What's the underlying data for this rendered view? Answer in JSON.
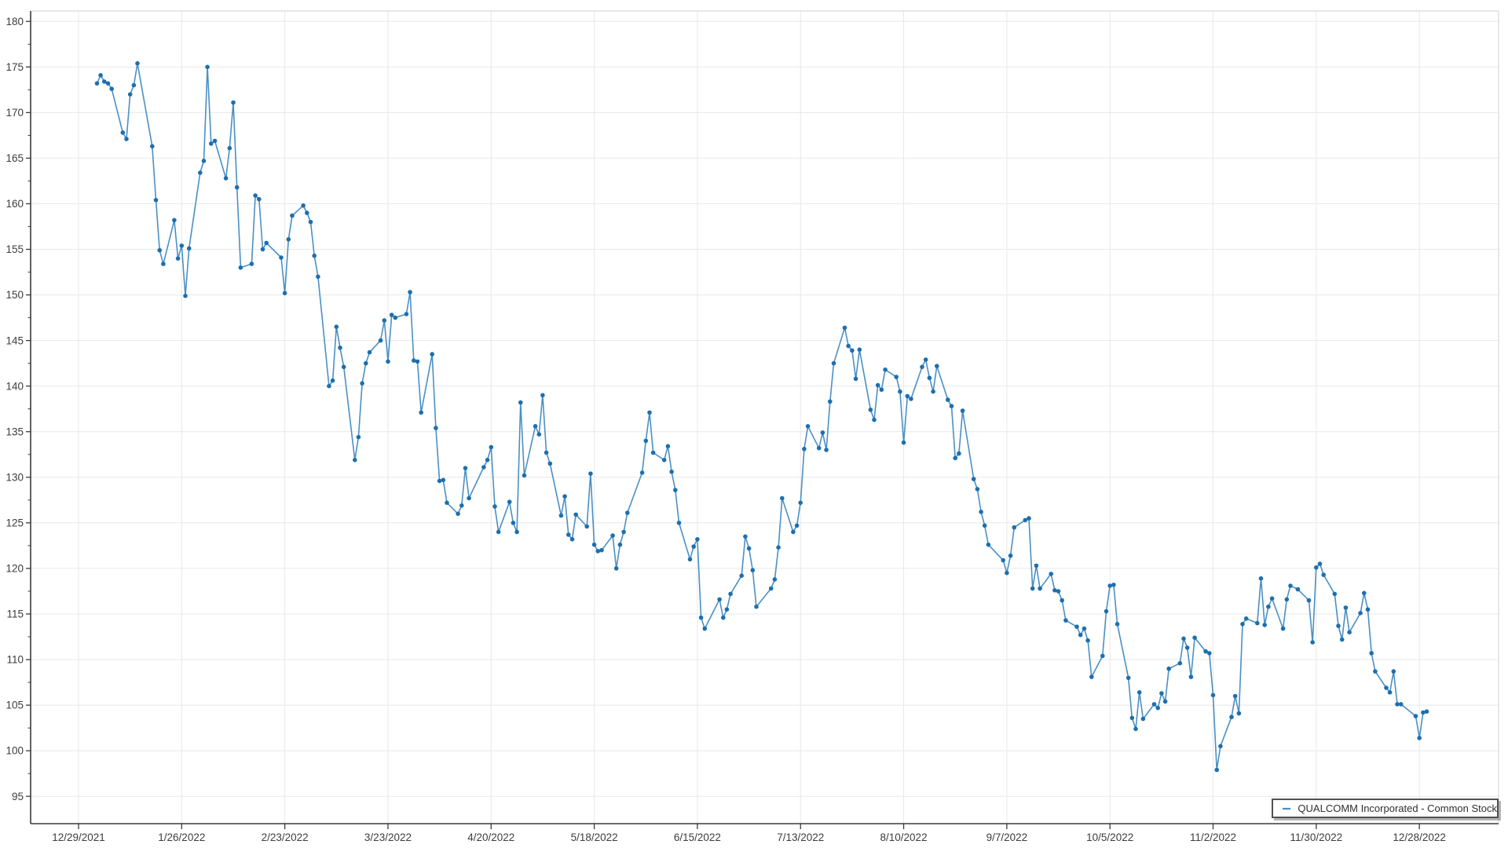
{
  "legend": {
    "label": "QUALCOMM Incorporated - Common Stock"
  },
  "colors": {
    "line": "#4a90c5",
    "marker": "#1d6fae",
    "grid": "#e8e8e8",
    "axis": "#3b3b3b",
    "outer_border": "#d9d9d9",
    "tick_label": "#3d3d3d"
  },
  "chart_data": {
    "type": "line",
    "title": "",
    "xlabel": "",
    "ylabel": "",
    "grid": true,
    "legend_position": "bottom-right",
    "x_start_date": "2021-12-29",
    "x_tick_labels": [
      "12/29/2021",
      "1/26/2022",
      "2/23/2022",
      "3/23/2022",
      "4/20/2022",
      "5/18/2022",
      "6/15/2022",
      "7/13/2022",
      "8/10/2022",
      "9/7/2022",
      "10/5/2022",
      "11/2/2022",
      "11/30/2022",
      "12/28/2022"
    ],
    "x_tick_dates": [
      "2021-12-29",
      "2022-01-26",
      "2022-02-23",
      "2022-03-23",
      "2022-04-20",
      "2022-05-18",
      "2022-06-15",
      "2022-07-13",
      "2022-08-10",
      "2022-09-07",
      "2022-10-05",
      "2022-11-02",
      "2022-11-30",
      "2022-12-28"
    ],
    "y_ticks": [
      95,
      100,
      105,
      110,
      115,
      120,
      125,
      130,
      135,
      140,
      145,
      150,
      155,
      160,
      165,
      170,
      175,
      180
    ],
    "ylim": [
      92.0,
      181.2
    ],
    "series": [
      {
        "name": "QUALCOMM Incorporated - Common Stock",
        "dates": [
          "2022-01-03",
          "2022-01-04",
          "2022-01-05",
          "2022-01-06",
          "2022-01-07",
          "2022-01-10",
          "2022-01-11",
          "2022-01-12",
          "2022-01-13",
          "2022-01-14",
          "2022-01-18",
          "2022-01-19",
          "2022-01-20",
          "2022-01-21",
          "2022-01-24",
          "2022-01-25",
          "2022-01-26",
          "2022-01-27",
          "2022-01-28",
          "2022-01-31",
          "2022-02-01",
          "2022-02-02",
          "2022-02-03",
          "2022-02-04",
          "2022-02-07",
          "2022-02-08",
          "2022-02-09",
          "2022-02-10",
          "2022-02-11",
          "2022-02-14",
          "2022-02-15",
          "2022-02-16",
          "2022-02-17",
          "2022-02-18",
          "2022-02-22",
          "2022-02-23",
          "2022-02-24",
          "2022-02-25",
          "2022-02-28",
          "2022-03-01",
          "2022-03-02",
          "2022-03-03",
          "2022-03-04",
          "2022-03-07",
          "2022-03-08",
          "2022-03-09",
          "2022-03-10",
          "2022-03-11",
          "2022-03-14",
          "2022-03-15",
          "2022-03-16",
          "2022-03-17",
          "2022-03-18",
          "2022-03-21",
          "2022-03-22",
          "2022-03-23",
          "2022-03-24",
          "2022-03-25",
          "2022-03-28",
          "2022-03-29",
          "2022-03-30",
          "2022-03-31",
          "2022-04-01",
          "2022-04-04",
          "2022-04-05",
          "2022-04-06",
          "2022-04-07",
          "2022-04-08",
          "2022-04-11",
          "2022-04-12",
          "2022-04-13",
          "2022-04-14",
          "2022-04-18",
          "2022-04-19",
          "2022-04-20",
          "2022-04-21",
          "2022-04-22",
          "2022-04-25",
          "2022-04-26",
          "2022-04-27",
          "2022-04-28",
          "2022-04-29",
          "2022-05-02",
          "2022-05-03",
          "2022-05-04",
          "2022-05-05",
          "2022-05-06",
          "2022-05-09",
          "2022-05-10",
          "2022-05-11",
          "2022-05-12",
          "2022-05-13",
          "2022-05-16",
          "2022-05-17",
          "2022-05-18",
          "2022-05-19",
          "2022-05-20",
          "2022-05-23",
          "2022-05-24",
          "2022-05-25",
          "2022-05-26",
          "2022-05-27",
          "2022-05-31",
          "2022-06-01",
          "2022-06-02",
          "2022-06-03",
          "2022-06-06",
          "2022-06-07",
          "2022-06-08",
          "2022-06-09",
          "2022-06-10",
          "2022-06-13",
          "2022-06-14",
          "2022-06-15",
          "2022-06-16",
          "2022-06-17",
          "2022-06-21",
          "2022-06-22",
          "2022-06-23",
          "2022-06-24",
          "2022-06-27",
          "2022-06-28",
          "2022-06-29",
          "2022-06-30",
          "2022-07-01",
          "2022-07-05",
          "2022-07-06",
          "2022-07-07",
          "2022-07-08",
          "2022-07-11",
          "2022-07-12",
          "2022-07-13",
          "2022-07-14",
          "2022-07-15",
          "2022-07-18",
          "2022-07-19",
          "2022-07-20",
          "2022-07-21",
          "2022-07-22",
          "2022-07-25",
          "2022-07-26",
          "2022-07-27",
          "2022-07-28",
          "2022-07-29",
          "2022-08-01",
          "2022-08-02",
          "2022-08-03",
          "2022-08-04",
          "2022-08-05",
          "2022-08-08",
          "2022-08-09",
          "2022-08-10",
          "2022-08-11",
          "2022-08-12",
          "2022-08-15",
          "2022-08-16",
          "2022-08-17",
          "2022-08-18",
          "2022-08-19",
          "2022-08-22",
          "2022-08-23",
          "2022-08-24",
          "2022-08-25",
          "2022-08-26",
          "2022-08-29",
          "2022-08-30",
          "2022-08-31",
          "2022-09-01",
          "2022-09-02",
          "2022-09-06",
          "2022-09-07",
          "2022-09-08",
          "2022-09-09",
          "2022-09-12",
          "2022-09-13",
          "2022-09-14",
          "2022-09-15",
          "2022-09-16",
          "2022-09-19",
          "2022-09-20",
          "2022-09-21",
          "2022-09-22",
          "2022-09-23",
          "2022-09-26",
          "2022-09-27",
          "2022-09-28",
          "2022-09-29",
          "2022-09-30",
          "2022-10-03",
          "2022-10-04",
          "2022-10-05",
          "2022-10-06",
          "2022-10-07",
          "2022-10-10",
          "2022-10-11",
          "2022-10-12",
          "2022-10-13",
          "2022-10-14",
          "2022-10-17",
          "2022-10-18",
          "2022-10-19",
          "2022-10-20",
          "2022-10-21",
          "2022-10-24",
          "2022-10-25",
          "2022-10-26",
          "2022-10-27",
          "2022-10-28",
          "2022-10-31",
          "2022-11-01",
          "2022-11-02",
          "2022-11-03",
          "2022-11-04",
          "2022-11-07",
          "2022-11-08",
          "2022-11-09",
          "2022-11-10",
          "2022-11-11",
          "2022-11-14",
          "2022-11-15",
          "2022-11-16",
          "2022-11-17",
          "2022-11-18",
          "2022-11-21",
          "2022-11-22",
          "2022-11-23",
          "2022-11-25",
          "2022-11-28",
          "2022-11-29",
          "2022-11-30",
          "2022-12-01",
          "2022-12-02",
          "2022-12-05",
          "2022-12-06",
          "2022-12-07",
          "2022-12-08",
          "2022-12-09",
          "2022-12-12",
          "2022-12-13",
          "2022-12-14",
          "2022-12-15",
          "2022-12-16",
          "2022-12-19",
          "2022-12-20",
          "2022-12-21",
          "2022-12-22",
          "2022-12-23",
          "2022-12-27",
          "2022-12-28",
          "2022-12-29",
          "2022-12-30"
        ],
        "values": [
          173.2,
          174.1,
          173.4,
          173.2,
          172.6,
          167.8,
          167.1,
          172.0,
          173.0,
          175.4,
          166.3,
          160.4,
          154.9,
          153.4,
          158.2,
          154.0,
          155.4,
          149.9,
          155.1,
          163.4,
          164.7,
          175.0,
          166.6,
          166.9,
          162.8,
          166.1,
          171.1,
          161.8,
          153.0,
          153.4,
          160.9,
          160.5,
          155.0,
          155.7,
          154.1,
          150.2,
          156.1,
          158.7,
          159.8,
          159.0,
          158.0,
          154.3,
          152.0,
          140.0,
          140.6,
          146.5,
          144.2,
          142.1,
          131.9,
          134.4,
          140.3,
          142.5,
          143.7,
          145.0,
          147.2,
          142.7,
          147.8,
          147.5,
          147.9,
          150.3,
          142.8,
          142.7,
          137.1,
          143.5,
          135.4,
          129.6,
          129.7,
          127.2,
          126.0,
          126.9,
          131.0,
          127.7,
          131.1,
          131.9,
          133.3,
          126.8,
          124.0,
          127.3,
          125.0,
          124.0,
          138.2,
          130.2,
          135.6,
          134.7,
          139.0,
          132.7,
          131.5,
          125.8,
          127.9,
          123.7,
          123.2,
          125.9,
          124.6,
          130.4,
          122.6,
          121.9,
          122.0,
          123.6,
          120.0,
          122.6,
          124.0,
          126.1,
          130.5,
          134.0,
          137.1,
          132.7,
          131.9,
          133.4,
          130.6,
          128.6,
          125.0,
          121.0,
          122.4,
          123.2,
          114.6,
          113.4,
          116.6,
          114.6,
          115.5,
          117.2,
          119.2,
          123.5,
          122.2,
          119.8,
          115.8,
          117.8,
          118.8,
          122.3,
          127.7,
          124.0,
          124.7,
          127.2,
          133.1,
          135.6,
          133.2,
          134.9,
          133.0,
          138.3,
          142.5,
          146.4,
          144.4,
          143.9,
          140.8,
          144.0,
          137.4,
          136.3,
          140.1,
          139.6,
          141.8,
          141.0,
          139.4,
          133.8,
          138.9,
          138.6,
          142.1,
          142.9,
          140.9,
          139.4,
          142.2,
          138.5,
          137.8,
          132.1,
          132.6,
          137.3,
          129.8,
          128.7,
          126.2,
          124.7,
          122.6,
          120.9,
          119.5,
          121.4,
          124.5,
          125.3,
          125.5,
          117.8,
          120.3,
          117.8,
          119.4,
          117.6,
          117.5,
          116.5,
          114.3,
          113.6,
          112.7,
          113.4,
          112.1,
          108.1,
          110.4,
          115.3,
          118.1,
          118.2,
          113.9,
          108.0,
          103.6,
          102.4,
          106.4,
          103.5,
          105.1,
          104.7,
          106.3,
          105.4,
          109.0,
          109.6,
          112.3,
          111.3,
          108.1,
          112.4,
          110.9,
          110.7,
          106.1,
          97.9,
          100.5,
          103.7,
          106.0,
          104.1,
          113.9,
          114.5,
          114.0,
          118.9,
          113.8,
          115.8,
          116.7,
          113.4,
          116.6,
          118.1,
          117.7,
          116.5,
          111.9,
          120.1,
          120.5,
          119.3,
          117.2,
          113.7,
          112.2,
          115.7,
          113.0,
          115.1,
          117.3,
          115.5,
          110.7,
          108.7,
          106.9,
          106.4,
          108.7,
          105.1,
          105.1,
          103.8,
          101.4,
          104.2,
          104.3
        ]
      }
    ]
  }
}
